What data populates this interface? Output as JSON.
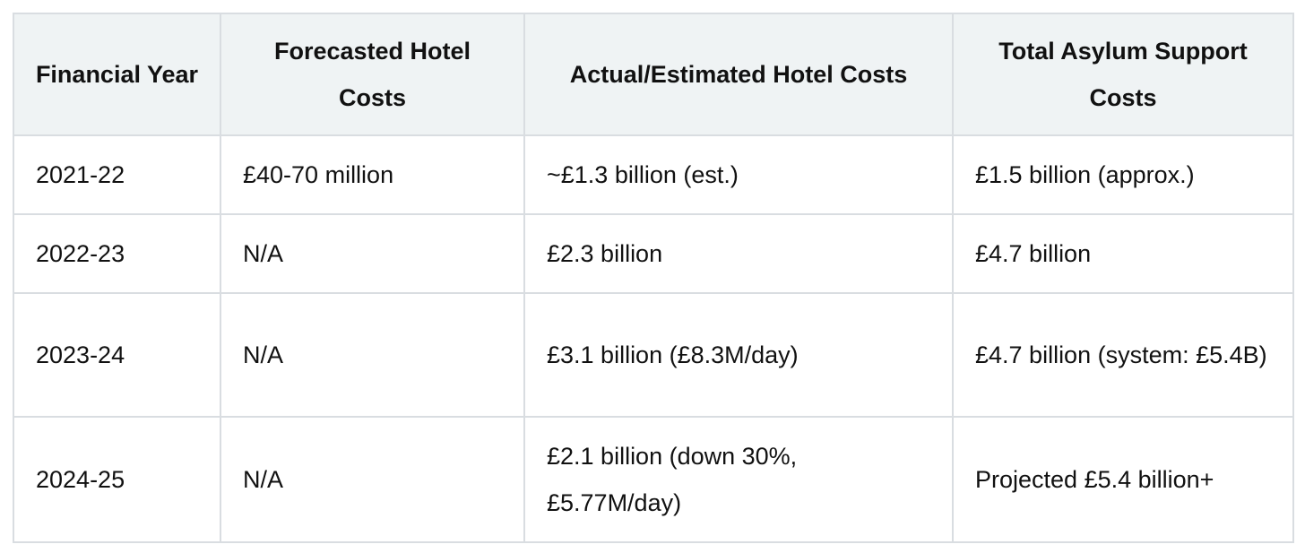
{
  "table": {
    "headers": [
      "Financial Year",
      "Forecasted Hotel Costs",
      "Actual/Estimated Hotel Costs",
      "Total Asylum Support Costs"
    ],
    "rows": [
      [
        "2021-22",
        "£40-70 million",
        "~£1.3 billion (est.)",
        "£1.5 billion (approx.)"
      ],
      [
        "2022-23",
        "N/A",
        "£2.3 billion",
        "£4.7 billion"
      ],
      [
        "2023-24",
        "N/A",
        "£3.1 billion (£8.3M/day)",
        "£4.7 billion (system: £5.4B)"
      ],
      [
        "2024-25",
        "N/A",
        "£2.1 billion (down 30%, £5.77M/day)",
        "Projected £5.4 billion+"
      ]
    ]
  }
}
